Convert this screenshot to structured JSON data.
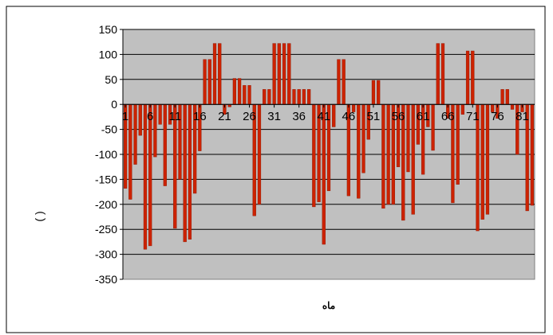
{
  "chart_data": {
    "type": "bar",
    "title": "",
    "xlabel": "ماه",
    "ylabel": "( )",
    "ylim": [
      -350,
      150
    ],
    "y_ticks": [
      150,
      100,
      50,
      0,
      -50,
      -100,
      -150,
      -200,
      -250,
      -300,
      -350
    ],
    "x_tick_labels": [
      "1",
      "6",
      "11",
      "16",
      "21",
      "26",
      "31",
      "36",
      "41",
      "46",
      "51",
      "56",
      "61",
      "66",
      "71",
      "76",
      "81"
    ],
    "grid": "horizontal",
    "legend": "none",
    "colors": {
      "bar": "#cc2200",
      "bar_edge": "#8a1500",
      "plot_background": "#c0c0c0",
      "gridline": "#000000"
    },
    "categories": [
      1,
      2,
      3,
      4,
      5,
      6,
      7,
      8,
      9,
      10,
      11,
      12,
      13,
      14,
      15,
      16,
      17,
      18,
      19,
      20,
      21,
      22,
      23,
      24,
      25,
      26,
      27,
      28,
      29,
      30,
      31,
      32,
      33,
      34,
      35,
      36,
      37,
      38,
      39,
      40,
      41,
      42,
      43,
      44,
      45,
      46,
      47,
      48,
      49,
      50,
      51,
      52,
      53,
      54,
      55,
      56,
      57,
      58,
      59,
      60,
      61,
      62,
      63,
      64,
      65,
      66,
      67,
      68,
      69,
      70,
      71,
      72,
      73,
      74,
      75,
      76,
      77,
      78,
      79,
      80,
      81,
      82,
      83
    ],
    "values": [
      -168,
      -190,
      -120,
      -62,
      -290,
      -283,
      -105,
      -40,
      -163,
      -40,
      -248,
      -150,
      -275,
      -270,
      -178,
      -93,
      90,
      90,
      122,
      122,
      -20,
      -5,
      52,
      52,
      38,
      38,
      -223,
      -200,
      30,
      30,
      122,
      122,
      122,
      122,
      30,
      30,
      30,
      30,
      -205,
      -195,
      -280,
      -173,
      -45,
      90,
      90,
      -183,
      -15,
      -188,
      -137,
      -70,
      48,
      48,
      -208,
      -200,
      -200,
      -125,
      -232,
      -135,
      -220,
      -80,
      -140,
      -45,
      -92,
      122,
      122,
      -28,
      -197,
      -160,
      -20,
      107,
      107,
      -253,
      -230,
      -220,
      -15,
      -28,
      30,
      30,
      -10,
      -100,
      -15,
      -213,
      -202
    ]
  }
}
